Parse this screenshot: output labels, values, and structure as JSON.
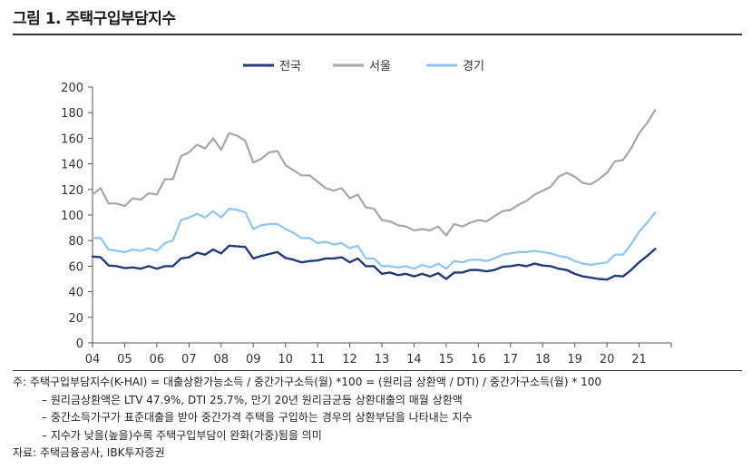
{
  "figure": {
    "title": "그림 1. 주택구입부담지수"
  },
  "notes": {
    "line1": "주: 주택구입부담지수(K-HAI) = 대출상환가능소득 / 중간가구소득(월) *100 = (원리금 상환액 / DTI) / 중간가구소득(월) * 100",
    "line2": "– 원리금상환액은 LTV 47.9%, DTI 25.7%, 만기 20년 원리금균등 상환대출의 매월 상환액",
    "line3": "– 중간소득가구가 표준대출을 받아 중간가격 주택을 구입하는 경우의 상환부담을 나타내는 지수",
    "line4": "– 지수가 낮을(높을)수록 주택구입부담이 완화(가중)됨을 의미",
    "source": "자료: 주택금융공사, IBK투자증권"
  },
  "chart_data": {
    "type": "line",
    "title": "",
    "xlabel": "",
    "ylabel": "",
    "ylim": [
      0,
      200
    ],
    "y_ticks": [
      0,
      20,
      40,
      60,
      80,
      100,
      120,
      140,
      160,
      180,
      200
    ],
    "x_tick_labels": [
      "04",
      "05",
      "06",
      "07",
      "08",
      "09",
      "10",
      "11",
      "12",
      "13",
      "14",
      "15",
      "16",
      "17",
      "18",
      "19",
      "20",
      "21"
    ],
    "x_start": 2004.0,
    "x_step": 0.25,
    "grid": false,
    "legend_position": "top",
    "series": [
      {
        "name": "전국",
        "color": "#1f3b7a",
        "values": [
          67.5,
          67,
          60.5,
          60,
          58.5,
          59,
          58,
          60,
          58,
          60,
          60,
          66,
          67,
          70.5,
          69,
          73,
          70,
          76,
          75.5,
          75,
          66,
          68,
          69.5,
          71,
          66.5,
          65,
          63,
          64,
          64.5,
          66,
          66,
          67,
          63,
          66,
          60,
          60,
          54,
          55,
          53,
          54,
          52,
          54,
          52,
          54.5,
          50,
          55,
          55,
          57,
          57,
          56,
          57,
          59.5,
          60,
          61,
          60,
          62,
          60.5,
          60,
          58,
          57,
          54,
          52,
          51,
          50,
          49.5,
          52.5,
          52,
          57,
          63,
          68,
          73.5
        ]
      },
      {
        "name": "서울",
        "color": "#a6a6a6",
        "values": [
          116,
          121,
          109,
          109,
          107,
          113,
          112,
          117,
          116,
          128,
          128,
          146,
          149,
          155,
          152,
          160,
          151,
          164,
          162,
          158,
          141,
          144,
          149,
          150,
          139,
          135,
          131,
          131,
          126,
          121,
          119,
          121,
          113,
          116,
          106,
          105,
          96,
          95,
          92,
          91,
          88,
          89,
          88,
          91,
          84,
          93,
          91,
          94,
          96,
          95,
          99,
          103,
          104,
          108,
          111,
          116,
          119,
          122,
          130,
          133,
          130,
          125,
          124,
          128,
          133,
          142,
          143,
          152,
          164,
          172,
          182
        ]
      },
      {
        "name": "경기",
        "color": "#8ec4f2",
        "values": [
          82,
          82,
          73,
          72,
          71,
          73,
          72,
          74,
          72,
          78,
          80,
          96,
          98,
          101,
          98,
          103,
          98,
          105,
          104,
          102,
          89,
          92,
          93,
          93,
          89,
          86,
          82,
          82,
          78,
          79,
          77,
          78,
          74,
          76,
          66,
          66,
          60,
          60,
          59,
          60,
          58,
          61,
          59,
          62,
          58,
          64,
          63,
          65,
          65,
          64,
          66,
          69,
          70,
          71,
          71,
          72,
          71,
          70,
          68,
          67,
          64,
          62,
          61,
          62,
          63,
          69,
          69,
          77,
          87,
          94,
          102
        ]
      }
    ]
  }
}
